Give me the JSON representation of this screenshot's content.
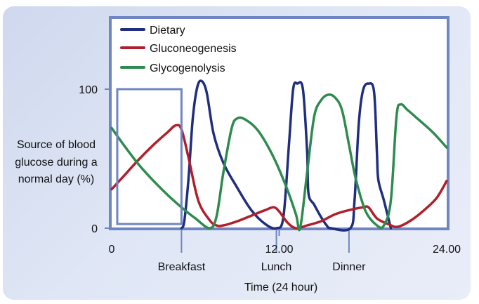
{
  "chart_data": {
    "type": "line",
    "title": "",
    "xlabel": "Time (24 hour)",
    "ylabel_lines": [
      "Source of blood",
      "glucose during a",
      "normal day (%)"
    ],
    "xlim": [
      0,
      24
    ],
    "ylim": [
      0,
      100
    ],
    "x_tick_labels": [
      {
        "x": 0,
        "label": "0"
      },
      {
        "x": 12,
        "label": "12.00"
      },
      {
        "x": 24,
        "label": "24.00"
      }
    ],
    "y_tick_labels": [
      {
        "y": 0,
        "label": "0"
      },
      {
        "y": 100,
        "label": "100"
      }
    ],
    "meal_markers": [
      {
        "x": 5,
        "label": "Breakfast"
      },
      {
        "x": 11.8,
        "label": "Lunch"
      },
      {
        "x": 17,
        "label": "Dinner"
      }
    ],
    "highlight_box": {
      "x0": 0.4,
      "x1": 5,
      "y0": 3,
      "y1": 100
    },
    "legend_position": "top-left",
    "colors": {
      "dietary": "#1f2e7e",
      "gluconeogenesis": "#b0202b",
      "glycogenolysis": "#2e8b4f",
      "frame": "#6f86c3"
    },
    "series": [
      {
        "name": "Dietary",
        "key": "dietary",
        "points": [
          [
            5,
            0
          ],
          [
            5.2,
            5
          ],
          [
            5.5,
            35
          ],
          [
            5.8,
            78
          ],
          [
            6.1,
            100
          ],
          [
            6.4,
            106
          ],
          [
            6.8,
            98
          ],
          [
            7.3,
            68
          ],
          [
            8,
            47
          ],
          [
            9,
            29
          ],
          [
            10,
            13
          ],
          [
            11,
            3
          ],
          [
            11.8,
            0
          ],
          [
            12.3,
            8
          ],
          [
            12.7,
            60
          ],
          [
            13,
            100
          ],
          [
            13.3,
            104
          ],
          [
            13.7,
            100
          ],
          [
            14,
            55
          ],
          [
            14.1,
            25
          ],
          [
            14.5,
            17
          ],
          [
            15,
            8
          ],
          [
            15.4,
            2
          ],
          [
            15.7,
            0
          ],
          [
            17.1,
            0
          ],
          [
            17.4,
            20
          ],
          [
            17.7,
            75
          ],
          [
            18,
            99
          ],
          [
            18.4,
            104
          ],
          [
            18.8,
            98
          ],
          [
            19,
            55
          ],
          [
            19.1,
            35
          ],
          [
            19.5,
            20
          ],
          [
            20,
            0
          ]
        ]
      },
      {
        "name": "Gluconeogenesis",
        "key": "gluconeogenesis",
        "points": [
          [
            0,
            28
          ],
          [
            1,
            39
          ],
          [
            2,
            50
          ],
          [
            3,
            60
          ],
          [
            4,
            69
          ],
          [
            4.6,
            74
          ],
          [
            5,
            71
          ],
          [
            5.5,
            51
          ],
          [
            6.2,
            20
          ],
          [
            7,
            6
          ],
          [
            7.5,
            2
          ],
          [
            8,
            2
          ],
          [
            9,
            5
          ],
          [
            10,
            9
          ],
          [
            11,
            13
          ],
          [
            11.6,
            15
          ],
          [
            12,
            12
          ],
          [
            12.6,
            4
          ],
          [
            13.2,
            0
          ],
          [
            14,
            2
          ],
          [
            15,
            5
          ],
          [
            16,
            10
          ],
          [
            17,
            13
          ],
          [
            18,
            15
          ],
          [
            18.4,
            15
          ],
          [
            19,
            7
          ],
          [
            19.8,
            3
          ],
          [
            20.5,
            1
          ],
          [
            21.5,
            6
          ],
          [
            22.5,
            14
          ],
          [
            23.3,
            22
          ],
          [
            24,
            34
          ]
        ]
      },
      {
        "name": "Glycogenolysis",
        "key": "glycogenolysis",
        "points": [
          [
            0,
            72
          ],
          [
            1,
            58
          ],
          [
            2,
            45
          ],
          [
            3,
            34
          ],
          [
            4,
            24
          ],
          [
            5,
            15
          ],
          [
            6,
            7
          ],
          [
            7,
            0
          ],
          [
            7.5,
            8
          ],
          [
            8,
            40
          ],
          [
            8.6,
            72
          ],
          [
            9,
            79
          ],
          [
            9.6,
            78
          ],
          [
            10.5,
            70
          ],
          [
            11.5,
            53
          ],
          [
            12.5,
            30
          ],
          [
            13.2,
            10
          ],
          [
            13.5,
            0
          ],
          [
            14,
            40
          ],
          [
            14.5,
            80
          ],
          [
            15,
            92
          ],
          [
            15.5,
            96
          ],
          [
            16,
            94
          ],
          [
            16.5,
            85
          ],
          [
            17,
            60
          ],
          [
            17.5,
            35
          ],
          [
            18.2,
            12
          ],
          [
            19,
            2
          ],
          [
            19.5,
            2
          ],
          [
            20,
            20
          ],
          [
            20.4,
            80
          ],
          [
            20.7,
            89
          ],
          [
            21.2,
            85
          ],
          [
            22,
            78
          ],
          [
            23,
            69
          ],
          [
            24,
            58
          ]
        ]
      }
    ]
  }
}
